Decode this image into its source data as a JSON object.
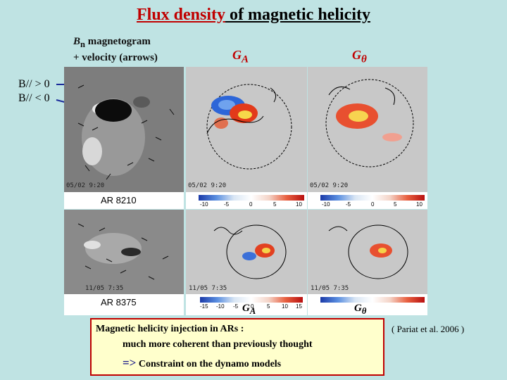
{
  "title": {
    "highlight": "Flux density",
    "rest": " of magnetic helicity"
  },
  "magnetogram_label": {
    "symbol": "B",
    "subscript": "n",
    "line1_rest": " magnetogram",
    "line2": "+ velocity (arrows)"
  },
  "ga_label": {
    "symbol": "G",
    "subscript": "A"
  },
  "gtheta_label": {
    "symbol": "G",
    "subscript": "θ"
  },
  "polarity": {
    "line1": "B// > 0",
    "line2": "B// < 0"
  },
  "regions": [
    {
      "label": "AR 8210",
      "timestamp": "05/02 9:20"
    },
    {
      "label": "AR 8375",
      "timestamp": "11/05 7:35"
    }
  ],
  "colorbar_ticks_top": [
    "-10",
    "-5",
    "0",
    "5",
    "10"
  ],
  "colorbar_ticks_bottom": [
    "-15",
    "-10",
    "-5",
    "0",
    "5",
    "10",
    "15"
  ],
  "conclusion": {
    "line1": "Magnetic helicity injection in ARs :",
    "line2": "much more coherent than previously thought",
    "arrow": "=>",
    "line3": "Constraint on the dynamo models"
  },
  "citation": "( Pariat et al. 2006 )",
  "colors": {
    "title_red": "#c00000",
    "background": "#bfe3e3",
    "box_fill": "#ffffcc"
  }
}
